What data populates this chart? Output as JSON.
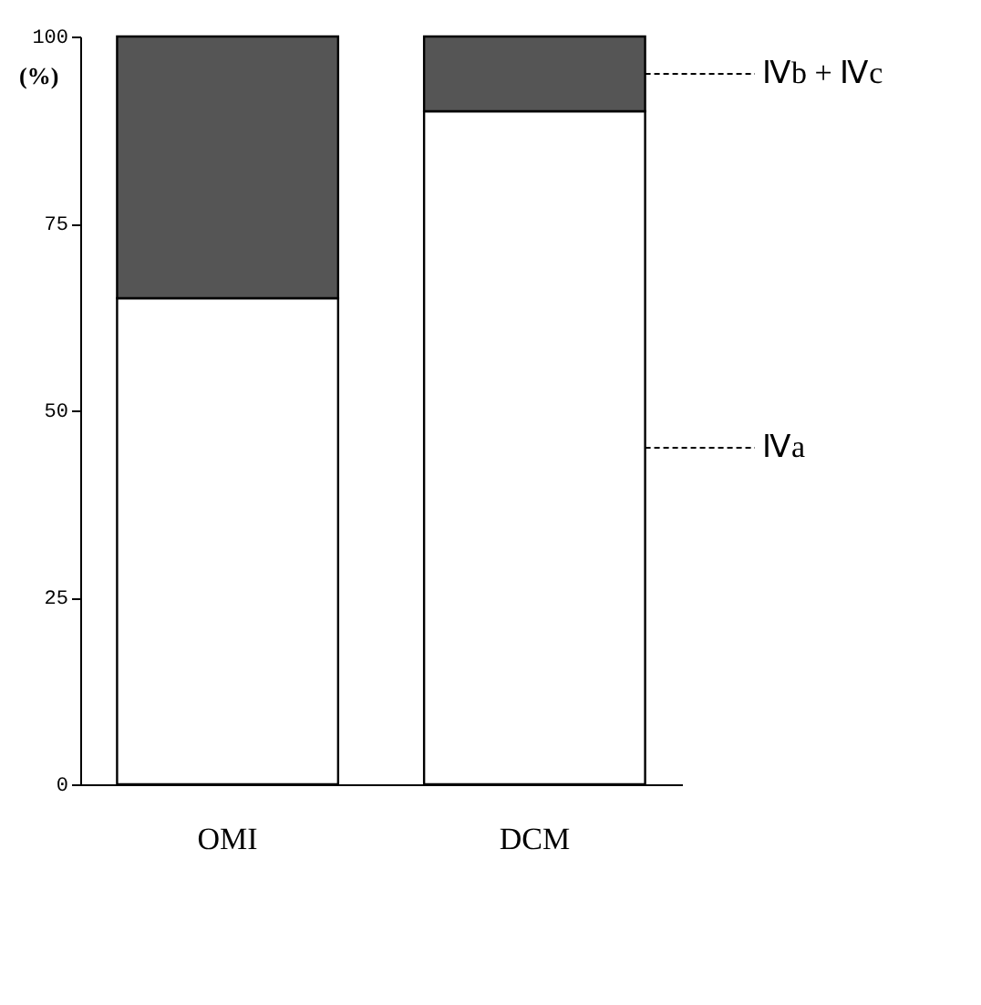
{
  "chart_data": {
    "type": "bar",
    "stacked": true,
    "ylabel": "(%)",
    "categories": [
      "OMI",
      "DCM"
    ],
    "series": [
      {
        "name": "Ⅳa",
        "color": "#ffffff",
        "values": [
          65,
          90
        ]
      },
      {
        "name": "Ⅳb + Ⅳc",
        "color": "#555555",
        "values": [
          35,
          10
        ]
      }
    ],
    "ylim": [
      0,
      100
    ],
    "yticks": [
      0,
      25,
      50,
      75,
      100
    ],
    "grid": false,
    "legend": "right"
  }
}
